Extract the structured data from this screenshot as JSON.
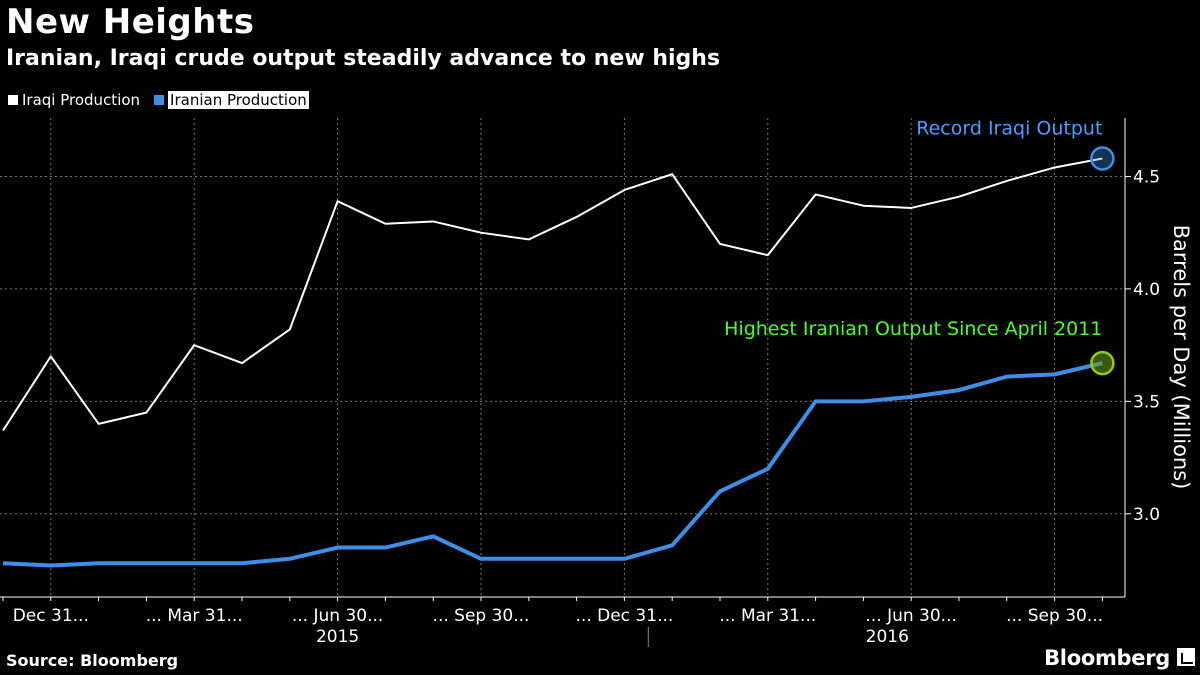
{
  "header": {
    "title": "New Heights",
    "subtitle": "Iranian, Iraqi crude output steadily advance to new highs"
  },
  "legend": {
    "items": [
      {
        "label": "Iraqi Production",
        "color": "#ffffff"
      },
      {
        "label": "Iranian Production",
        "color": "#3d8ee6"
      }
    ]
  },
  "footer": {
    "source": "Source: Bloomberg",
    "brand": "Bloomberg"
  },
  "chart_data": {
    "type": "line",
    "title": "New Heights",
    "ylabel": "Barrels per Day (Millions)",
    "ylim": [
      2.63,
      4.76
    ],
    "yticks": [
      3.0,
      3.5,
      4.0,
      4.5
    ],
    "x_tick_labels": [
      "Dec 31...",
      "... Mar 31...",
      "... Jun 30...",
      "... Sep 30...",
      "... Dec 31...",
      "... Mar 31...",
      "... Jun 30...",
      "... Sep 30..."
    ],
    "x_tick_index": [
      1,
      4,
      7,
      10,
      13,
      16,
      19,
      22
    ],
    "year_labels": [
      {
        "label": "2015",
        "center_index": 7
      },
      {
        "label": "2016",
        "center_index": 18.5
      }
    ],
    "grid": true,
    "series": [
      {
        "name": "Iraqi Production",
        "color": "#ffffff",
        "values": [
          3.37,
          3.7,
          3.4,
          3.45,
          3.75,
          3.67,
          3.82,
          4.39,
          4.29,
          4.3,
          4.25,
          4.22,
          4.32,
          4.44,
          4.51,
          4.2,
          4.15,
          4.42,
          4.37,
          4.36,
          4.41,
          4.48,
          4.54,
          4.58
        ]
      },
      {
        "name": "Iranian Production",
        "color": "#3d8ee6",
        "values": [
          2.78,
          2.77,
          2.78,
          2.78,
          2.78,
          2.78,
          2.8,
          2.85,
          2.85,
          2.9,
          2.8,
          2.8,
          2.8,
          2.8,
          2.86,
          3.1,
          3.2,
          3.5,
          3.5,
          3.52,
          3.55,
          3.61,
          3.62,
          3.67
        ]
      }
    ],
    "annotations": [
      {
        "text": "Record Iraqi Output",
        "series": 0,
        "index": 23,
        "color": "#4a9eff"
      },
      {
        "text": "Highest Iranian Output Since April 2011",
        "series": 1,
        "index": 23,
        "color": "#4cff2a"
      }
    ]
  }
}
